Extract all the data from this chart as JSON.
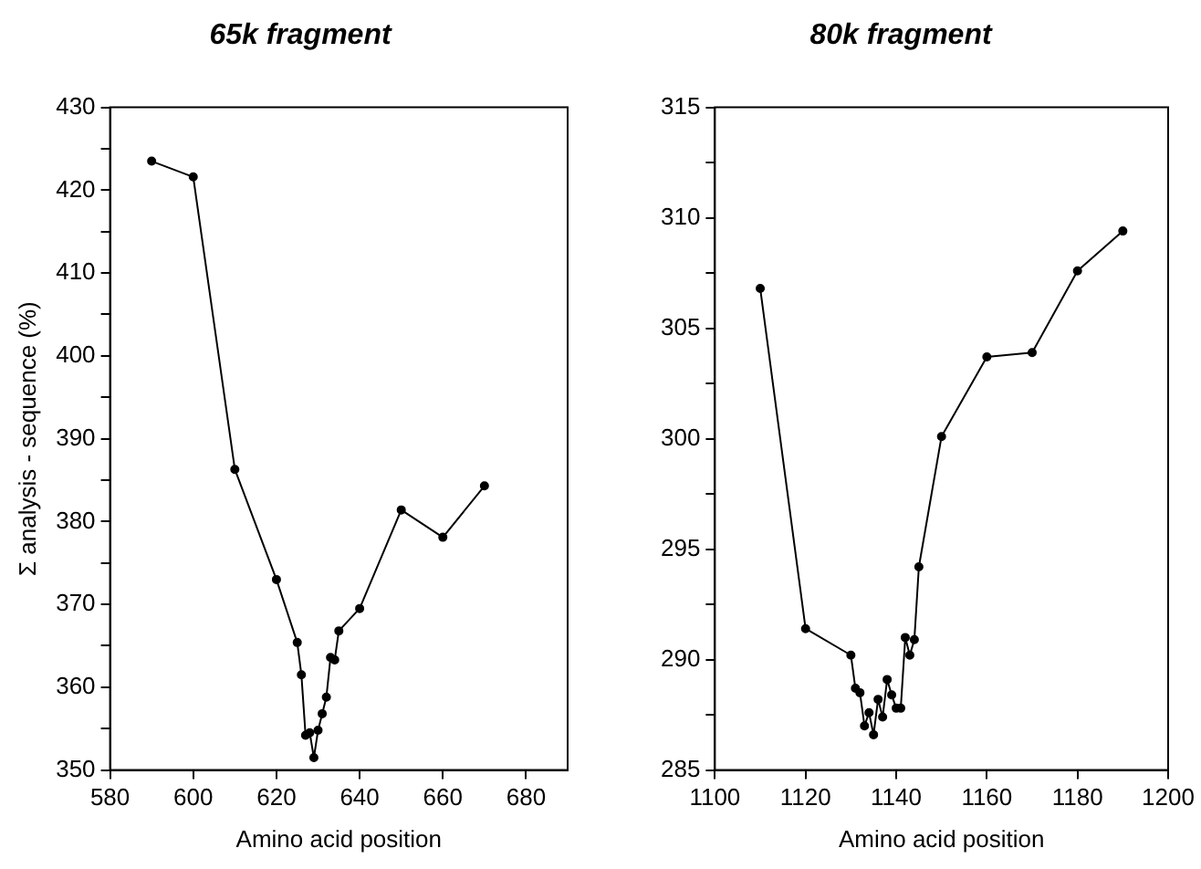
{
  "chart_data": [
    {
      "type": "line",
      "title": "65k fragment",
      "xlabel": "Amino acid position",
      "ylabel": "Σ analysis - sequence (%)",
      "x": [
        590,
        600,
        610,
        620,
        625,
        626,
        627,
        628,
        629,
        630,
        631,
        632,
        633,
        634,
        635,
        640,
        650,
        660,
        670
      ],
      "series": [
        {
          "color": "#000000",
          "values": [
            423.5,
            421.6,
            386.3,
            373.0,
            365.4,
            361.5,
            354.2,
            354.5,
            351.5,
            354.8,
            356.8,
            358.8,
            363.6,
            363.3,
            366.8,
            369.5,
            381.4,
            378.1,
            384.3
          ]
        }
      ],
      "xlim": [
        580,
        690
      ],
      "xticks": [
        580,
        600,
        620,
        640,
        660,
        680
      ],
      "ylim": [
        350,
        430
      ],
      "yticks": [
        350,
        {
          "value": 355,
          "label": null
        },
        360,
        {
          "value": 365,
          "label": null
        },
        370,
        {
          "value": 375,
          "label": null
        },
        380,
        {
          "value": 385,
          "label": null
        },
        390,
        {
          "value": 395,
          "label": null
        },
        400,
        {
          "value": 405,
          "label": null
        },
        410,
        {
          "value": 415,
          "label": null
        },
        420,
        {
          "value": 425,
          "label": null
        },
        430
      ],
      "grid": false,
      "legend": false,
      "marker": "circle",
      "line_style": "solid"
    },
    {
      "type": "line",
      "title": "80k fragment",
      "xlabel": "Amino acid position",
      "x": [
        1110,
        1120,
        1130,
        1131,
        1132,
        1133,
        1134,
        1135,
        1136,
        1137,
        1138,
        1139,
        1140,
        1141,
        1142,
        1143,
        1144,
        1145,
        1150,
        1160,
        1170,
        1180,
        1190
      ],
      "series": [
        {
          "color": "#000000",
          "values": [
            306.8,
            291.4,
            290.2,
            288.7,
            288.5,
            287.0,
            287.6,
            286.6,
            288.2,
            287.4,
            289.1,
            288.4,
            287.8,
            287.8,
            291.0,
            290.2,
            290.9,
            294.2,
            300.1,
            303.7,
            303.9,
            307.6,
            309.4
          ]
        }
      ],
      "xlim": [
        1100,
        1200
      ],
      "xticks": [
        1100,
        1120,
        1140,
        1160,
        1180,
        1200
      ],
      "ylim": [
        285,
        315
      ],
      "yticks": [
        285,
        {
          "value": 287.5,
          "label": null
        },
        290,
        {
          "value": 292.5,
          "label": null
        },
        295,
        {
          "value": 297.5,
          "label": null
        },
        300,
        {
          "value": 302.5,
          "label": null
        },
        305,
        {
          "value": 307.5,
          "label": null
        },
        310,
        {
          "value": 312.5,
          "label": null
        },
        315
      ],
      "grid": false,
      "legend": false,
      "marker": "circle",
      "line_style": "solid"
    }
  ]
}
